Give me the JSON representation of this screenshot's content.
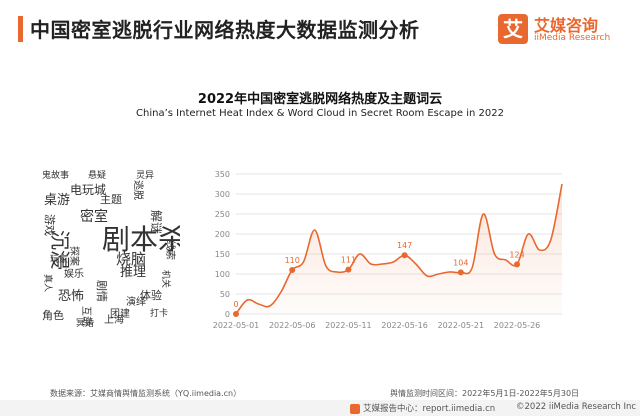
{
  "header": {
    "title": "中国密室逃脱行业网络热度大数据监测分析"
  },
  "brand": {
    "badge": "艾",
    "name": "艾媒咨询",
    "sub": "iiMedia Research",
    "color": "#e8682f"
  },
  "wordcloud": {
    "words": [
      "鬼故事",
      "悬疑",
      "灵异",
      "电玩城",
      "逃脱",
      "桌游",
      "密室",
      "剧本杀",
      "沉浸",
      "恐怖",
      "解谜",
      "游戏",
      "主题",
      "推理",
      "线索",
      "娱乐",
      "角色",
      "烧脑",
      "互动",
      "体验",
      "剧情",
      "玩家",
      "打卡",
      "团建",
      "探案",
      "机关",
      "演绎",
      "上海",
      "冥婚",
      "真人"
    ]
  },
  "chart_data": {
    "type": "line",
    "title": "2022年中国密室逃脱网络热度及主题词云",
    "subtitle": "China’s Internet Heat Index & Word Cloud in Secret Room Escape in 2022",
    "x_tick_labels": [
      "2022-05-01",
      "2022-05-06",
      "2022-05-11",
      "2022-05-16",
      "2022-05-21",
      "2022-05-26"
    ],
    "y_ticks": [
      0,
      50,
      100,
      150,
      200,
      250,
      300,
      350
    ],
    "ylim": [
      0,
      350
    ],
    "x": [
      "2022-05-01",
      "2022-05-02",
      "2022-05-03",
      "2022-05-04",
      "2022-05-05",
      "2022-05-06",
      "2022-05-07",
      "2022-05-08",
      "2022-05-09",
      "2022-05-10",
      "2022-05-11",
      "2022-05-12",
      "2022-05-13",
      "2022-05-14",
      "2022-05-15",
      "2022-05-16",
      "2022-05-17",
      "2022-05-18",
      "2022-05-19",
      "2022-05-20",
      "2022-05-21",
      "2022-05-22",
      "2022-05-23",
      "2022-05-24",
      "2022-05-25",
      "2022-05-26",
      "2022-05-27",
      "2022-05-28",
      "2022-05-29",
      "2022-05-30"
    ],
    "values": [
      0,
      35,
      25,
      20,
      55,
      110,
      130,
      210,
      120,
      105,
      111,
      150,
      125,
      125,
      130,
      147,
      125,
      95,
      100,
      105,
      104,
      115,
      250,
      150,
      135,
      124,
      200,
      160,
      185,
      325
    ],
    "labeled_points": [
      {
        "x": "2022-05-01",
        "value": 0,
        "label": "0"
      },
      {
        "x": "2022-05-06",
        "value": 110,
        "label": "110"
      },
      {
        "x": "2022-05-11",
        "value": 111,
        "label": "111"
      },
      {
        "x": "2022-05-16",
        "value": 147,
        "label": "147"
      },
      {
        "x": "2022-05-21",
        "value": 104,
        "label": "104"
      },
      {
        "x": "2022-05-26",
        "value": 124,
        "label": "124"
      }
    ],
    "line_color": "#e8682f",
    "grid": true,
    "legend": false
  },
  "footer": {
    "source": "数据来源：艾媒商情舆情监测系统（YQ.iimedia.cn）",
    "period": "舆情监测时间区间：2022年5月1日-2022年5月30日",
    "center": "艾媒报告中心：report.iimedia.cn",
    "copyright": "©2022  iiMedia Research  Inc"
  }
}
